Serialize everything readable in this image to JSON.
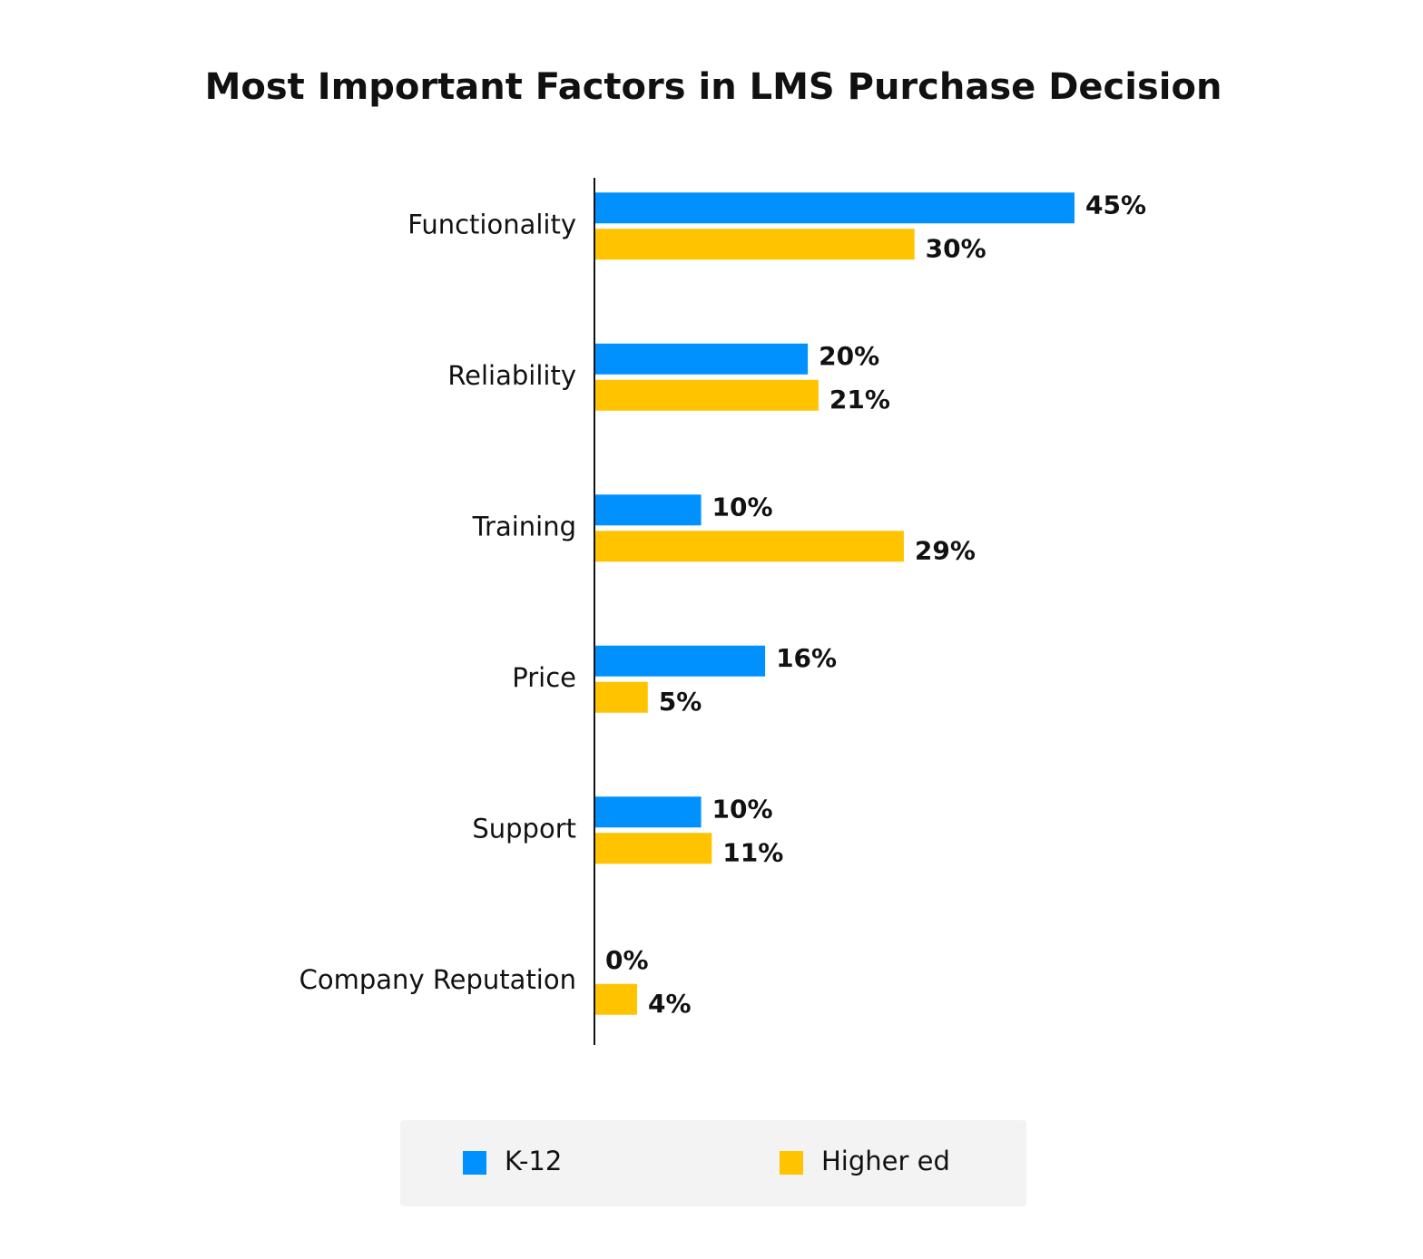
{
  "chart_data": {
    "type": "bar",
    "orientation": "horizontal",
    "title": "Most Important Factors in LMS Purchase Decision",
    "categories": [
      "Functionality",
      "Reliability",
      "Training",
      "Price",
      "Support",
      "Company Reputation"
    ],
    "series": [
      {
        "name": "K-12",
        "color": "#0091ff",
        "values": [
          45,
          20,
          10,
          16,
          10,
          0
        ],
        "value_labels": [
          "45%",
          "20%",
          "10%",
          "16%",
          "10%",
          "0%"
        ]
      },
      {
        "name": "Higher ed",
        "color": "#ffc300",
        "values": [
          30,
          21,
          29,
          5,
          11,
          4
        ],
        "value_labels": [
          "30%",
          "21%",
          "29%",
          "5%",
          "11%",
          "4%"
        ]
      }
    ],
    "legend": "bottom"
  }
}
